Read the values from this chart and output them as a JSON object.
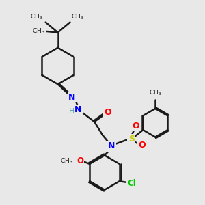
{
  "bg_color": "#e8e8e8",
  "bond_color": "#1a1a1a",
  "bond_width": 1.8,
  "atom_colors": {
    "N": "#0000ff",
    "O": "#ff0000",
    "S": "#cccc00",
    "Cl": "#00cc00",
    "H": "#4a9a9a",
    "C": "#1a1a1a"
  },
  "figsize": [
    3.0,
    3.0
  ],
  "dpi": 100
}
